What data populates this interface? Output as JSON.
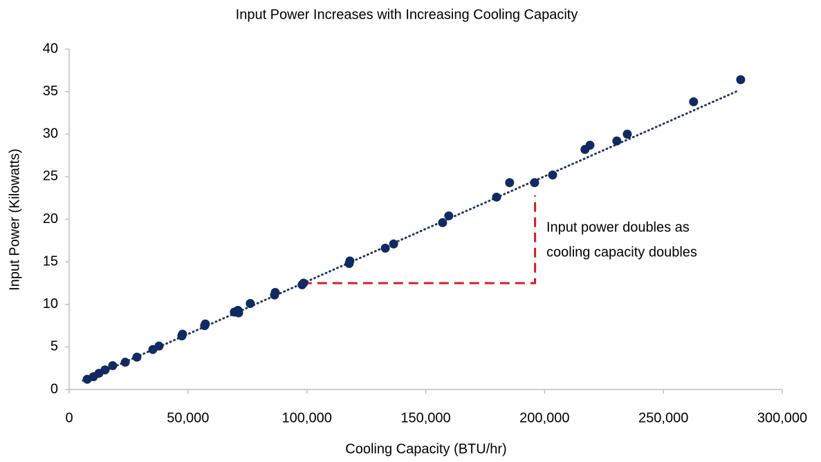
{
  "chart_data": {
    "type": "scatter",
    "title": "Input Power Increases with Increasing Cooling Capacity",
    "xlabel": "Cooling Capacity (BTU/hr)",
    "ylabel": "Input Power (Kilowatts)",
    "x": [
      7600,
      10200,
      12500,
      15100,
      18300,
      23600,
      28500,
      35200,
      37800,
      47400,
      47700,
      57000,
      57300,
      69500,
      71300,
      71000,
      76200,
      86400,
      86700,
      98000,
      98600,
      117800,
      118100,
      133000,
      136500,
      157100,
      159700,
      179800,
      185300,
      195800,
      203400,
      217000,
      219100,
      230400,
      234800,
      262700,
      282500
    ],
    "series": [
      {
        "name": "Input Power",
        "color": "#112a61",
        "values": [
          1.2,
          1.5,
          1.9,
          2.3,
          2.8,
          3.2,
          3.8,
          4.7,
          5.1,
          6.3,
          6.5,
          7.5,
          7.7,
          9.1,
          9.0,
          9.3,
          10.1,
          11.1,
          11.4,
          12.3,
          12.5,
          14.8,
          15.1,
          16.6,
          17.1,
          19.6,
          20.4,
          22.6,
          24.3,
          24.3,
          25.2,
          28.2,
          28.7,
          29.2,
          30.0,
          33.8,
          36.4
        ]
      }
    ],
    "trendline": {
      "color": "#1f3864",
      "x": [
        5800,
        281000
      ],
      "y": [
        1.05,
        35.05
      ]
    },
    "annotation_line": {
      "color": "#d42020",
      "x": [
        98000,
        196000,
        196000
      ],
      "y": [
        12.5,
        12.5,
        22.8
      ]
    },
    "annotation": [
      "Input power doubles as",
      "cooling capacity doubles"
    ],
    "xlim": [
      0,
      300000
    ],
    "xticks": [
      0,
      {
        "value": 50000,
        "label": "50,000"
      },
      {
        "value": 100000,
        "label": "100,000"
      },
      {
        "value": 150000,
        "label": "150,000"
      },
      {
        "value": 200000,
        "label": "200,000"
      },
      {
        "value": 250000,
        "label": "250,000"
      },
      {
        "value": 300000,
        "label": "300,000"
      }
    ],
    "ylim": [
      0,
      40
    ],
    "yticks": [
      0,
      5,
      10,
      15,
      20,
      25,
      30,
      35,
      40
    ],
    "grid": false
  }
}
